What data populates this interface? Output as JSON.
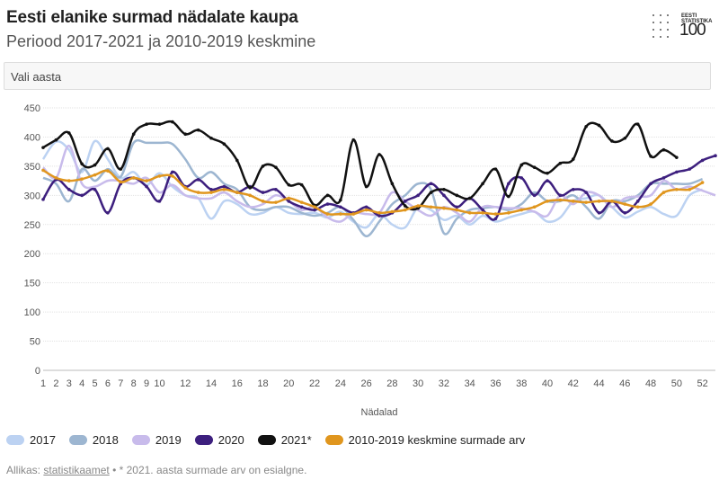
{
  "header": {
    "title": "Eesti elanike surmad nädalate kaupa",
    "subtitle": "Periood 2017-2021 ja 2010-2019 keskmine"
  },
  "logo": {
    "top_text": "EESTI STATISTIKA",
    "number": "100"
  },
  "selector": {
    "label": "Vali aasta"
  },
  "footer": {
    "prefix": "Allikas:",
    "link": "statistikaamet",
    "note": "• * 2021. aasta surmade arv on esialgne."
  },
  "chart_data": {
    "type": "line",
    "title": "Eesti elanike surmad nädalate kaupa",
    "xlabel": "Nädalad",
    "ylabel": "",
    "ylim": [
      0,
      450
    ],
    "yticks": [
      0,
      50,
      100,
      150,
      200,
      250,
      300,
      350,
      400,
      450
    ],
    "xticks": [
      1,
      2,
      3,
      4,
      5,
      6,
      7,
      8,
      9,
      10,
      12,
      14,
      16,
      18,
      20,
      22,
      24,
      26,
      28,
      30,
      32,
      34,
      36,
      38,
      40,
      42,
      44,
      46,
      48,
      50,
      52
    ],
    "x": [
      1,
      2,
      3,
      4,
      5,
      6,
      7,
      8,
      9,
      10,
      11,
      12,
      13,
      14,
      15,
      16,
      17,
      18,
      19,
      20,
      21,
      22,
      23,
      24,
      25,
      26,
      27,
      28,
      29,
      30,
      31,
      32,
      33,
      34,
      35,
      36,
      37,
      38,
      39,
      40,
      41,
      42,
      43,
      44,
      45,
      46,
      47,
      48,
      49,
      50,
      51,
      52,
      53
    ],
    "series": [
      {
        "name": "2017",
        "color": "#bcd2f2",
        "dots": false,
        "values": [
          362,
          392,
          378,
          340,
          393,
          362,
          330,
          340,
          318,
          338,
          315,
          300,
          295,
          260,
          290,
          285,
          268,
          270,
          280,
          270,
          268,
          270,
          262,
          272,
          255,
          245,
          268,
          250,
          245,
          280,
          275,
          258,
          265,
          250,
          265,
          255,
          262,
          268,
          272,
          255,
          262,
          290,
          295,
          300,
          280,
          262,
          272,
          280,
          268,
          265,
          300,
          310,
          null
        ]
      },
      {
        "name": "2018",
        "color": "#9db6d1",
        "dots": false,
        "values": [
          330,
          320,
          290,
          345,
          325,
          345,
          332,
          390,
          390,
          390,
          388,
          362,
          330,
          340,
          320,
          310,
          280,
          275,
          280,
          280,
          270,
          265,
          270,
          280,
          258,
          230,
          255,
          285,
          300,
          320,
          310,
          235,
          260,
          275,
          278,
          280,
          275,
          285,
          305,
          290,
          290,
          300,
          280,
          260,
          290,
          290,
          300,
          320,
          320,
          320,
          320,
          328,
          null
        ]
      },
      {
        "name": "2019",
        "color": "#c8bbeb",
        "dots": false,
        "values": [
          348,
          330,
          385,
          320,
          315,
          325,
          325,
          320,
          330,
          305,
          318,
          300,
          295,
          295,
          305,
          290,
          280,
          285,
          300,
          290,
          275,
          280,
          262,
          255,
          270,
          268,
          270,
          305,
          290,
          275,
          265,
          280,
          270,
          255,
          280,
          280,
          278,
          278,
          272,
          265,
          300,
          285,
          305,
          300,
          280,
          295,
          298,
          300,
          325,
          310,
          315,
          308,
          300
        ]
      },
      {
        "name": "2020",
        "color": "#3d1f7e",
        "dots": true,
        "values": [
          293,
          327,
          310,
          300,
          310,
          270,
          320,
          330,
          315,
          290,
          340,
          315,
          327,
          310,
          315,
          305,
          315,
          305,
          310,
          290,
          280,
          275,
          285,
          280,
          270,
          280,
          265,
          270,
          290,
          300,
          320,
          300,
          280,
          295,
          275,
          260,
          320,
          330,
          300,
          325,
          300,
          310,
          305,
          270,
          290,
          270,
          290,
          320,
          330,
          340,
          345,
          360,
          368
        ]
      },
      {
        "name": "2021*",
        "color": "#111111",
        "dots": true,
        "values": [
          382,
          395,
          407,
          354,
          352,
          380,
          345,
          405,
          422,
          422,
          426,
          405,
          412,
          398,
          388,
          360,
          313,
          350,
          348,
          318,
          318,
          283,
          300,
          292,
          395,
          315,
          370,
          320,
          282,
          278,
          305,
          310,
          300,
          295,
          320,
          345,
          298,
          352,
          348,
          338,
          355,
          362,
          418,
          420,
          393,
          398,
          422,
          367,
          378,
          365,
          null,
          null,
          null
        ]
      },
      {
        "name": "2010-2019 keskmine surmade arv",
        "color": "#e0961e",
        "dots": true,
        "values": [
          343,
          330,
          325,
          328,
          335,
          342,
          323,
          330,
          325,
          333,
          333,
          313,
          305,
          305,
          310,
          305,
          300,
          290,
          288,
          295,
          288,
          280,
          268,
          268,
          268,
          275,
          270,
          272,
          275,
          282,
          280,
          278,
          275,
          270,
          270,
          268,
          270,
          275,
          280,
          290,
          292,
          290,
          288,
          290,
          290,
          285,
          280,
          285,
          305,
          310,
          310,
          322,
          null
        ]
      }
    ]
  },
  "legend": [
    "2017",
    "2018",
    "2019",
    "2020",
    "2021*",
    "2010-2019 keskmine surmade arv"
  ]
}
